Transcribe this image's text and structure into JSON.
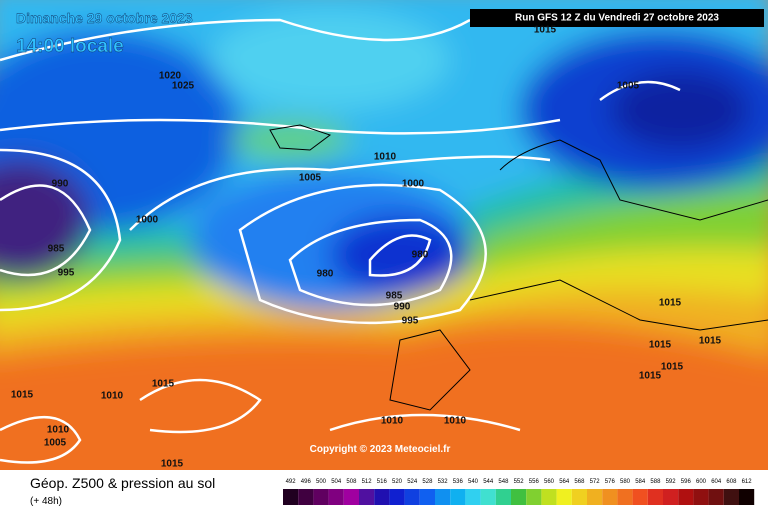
{
  "header": {
    "date": "Dimanche 29 octobre 2023",
    "time": "14:00 locale",
    "run": "Run GFS 12 Z du Vendredi 27 octobre 2023"
  },
  "copyright": "Copyright © 2023 Meteociel.fr",
  "footer": {
    "title": "Géop. Z500 & pression au sol",
    "lead": "(+ 48h)"
  },
  "scale": [
    492,
    496,
    500,
    504,
    508,
    512,
    516,
    520,
    524,
    528,
    532,
    536,
    540,
    544,
    548,
    552,
    556,
    560,
    564,
    568,
    572,
    576,
    580,
    584,
    588,
    592,
    596,
    600,
    604,
    608,
    612
  ],
  "isobar_labels": [
    990,
    985,
    995,
    1000,
    980,
    980,
    985,
    990,
    995,
    1015,
    1015,
    1015,
    1015,
    1015,
    1015,
    1015,
    1010,
    1010,
    1005,
    1010,
    1010,
    1015,
    1010,
    1005,
    1000,
    1020,
    1025,
    1005,
    1015
  ]
}
